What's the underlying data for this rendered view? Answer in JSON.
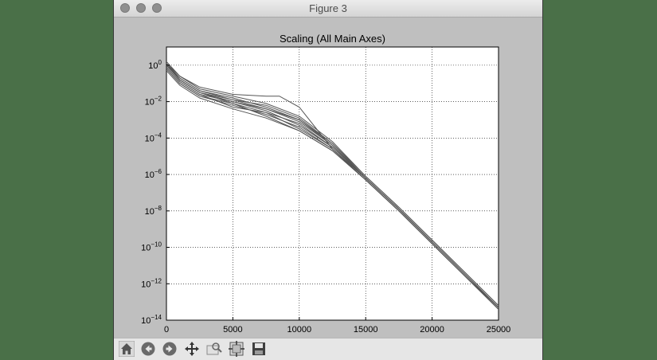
{
  "window": {
    "title": "Figure 3"
  },
  "toolbar": {
    "buttons": [
      {
        "name": "home-button",
        "icon": "home-icon"
      },
      {
        "name": "back-button",
        "icon": "back-arrow-icon"
      },
      {
        "name": "forward-button",
        "icon": "forward-arrow-icon"
      },
      {
        "name": "pan-button",
        "icon": "pan-arrows-icon"
      },
      {
        "name": "zoom-button",
        "icon": "zoom-rect-icon"
      },
      {
        "name": "subplots-button",
        "icon": "subplots-config-icon"
      },
      {
        "name": "save-button",
        "icon": "save-floppy-icon"
      }
    ]
  },
  "chart_data": {
    "type": "line",
    "title": "Scaling (All Main Axes)",
    "xlabel": "",
    "ylabel": "",
    "yscale": "log",
    "xlim": [
      0,
      25000
    ],
    "ylim_exp": [
      -14,
      1
    ],
    "xticks": [
      0,
      5000,
      10000,
      15000,
      20000,
      25000
    ],
    "xtick_labels": [
      "0",
      "5000",
      "10000",
      "15000",
      "20000",
      "25000"
    ],
    "yticks_exp": [
      0,
      -2,
      -4,
      -6,
      -8,
      -10,
      -12,
      -14
    ],
    "grid": true,
    "line_color": "#555555",
    "series": [
      {
        "x": [
          0,
          1000,
          2500,
          5000,
          7500,
          10000,
          12500,
          15000,
          17500,
          20000,
          22500,
          25000
        ],
        "log10_y": [
          0.0,
          -0.8,
          -1.5,
          -1.9,
          -2.4,
          -3.1,
          -4.4,
          -6.2,
          -7.9,
          -9.7,
          -11.5,
          -13.3
        ]
      },
      {
        "x": [
          0,
          1000,
          2500,
          5000,
          7500,
          10000,
          12500,
          15000,
          17500,
          20000,
          22500,
          25000
        ],
        "log10_y": [
          -0.1,
          -0.9,
          -1.6,
          -2.0,
          -2.5,
          -3.3,
          -4.5,
          -6.2,
          -7.9,
          -9.7,
          -11.5,
          -13.3
        ]
      },
      {
        "x": [
          0,
          1000,
          2500,
          5000,
          7500,
          10000,
          12500,
          15000,
          17500,
          20000,
          22500,
          25000
        ],
        "log10_y": [
          0.1,
          -0.7,
          -1.4,
          -1.8,
          -2.3,
          -3.0,
          -4.3,
          -6.1,
          -7.8,
          -9.6,
          -11.4,
          -13.2
        ]
      },
      {
        "x": [
          0,
          1000,
          2500,
          5000,
          7500,
          10000,
          12500,
          15000,
          17500,
          20000,
          22500,
          25000
        ],
        "log10_y": [
          -0.2,
          -1.0,
          -1.7,
          -2.2,
          -2.7,
          -3.4,
          -4.6,
          -6.3,
          -8.0,
          -9.8,
          -11.6,
          -13.4
        ]
      },
      {
        "x": [
          0,
          1000,
          2500,
          5000,
          7500,
          10000,
          12500,
          15000,
          17500,
          20000,
          22500,
          25000
        ],
        "log10_y": [
          0.0,
          -0.8,
          -1.5,
          -2.1,
          -2.8,
          -3.6,
          -4.7,
          -6.3,
          -8.0,
          -9.8,
          -11.6,
          -13.3
        ]
      },
      {
        "x": [
          0,
          1000,
          2500,
          5000,
          7500,
          10000,
          12500,
          15000,
          17500,
          20000,
          22500,
          25000
        ],
        "log10_y": [
          -0.3,
          -1.1,
          -1.8,
          -2.4,
          -2.9,
          -3.6,
          -4.7,
          -6.3,
          -8.0,
          -9.8,
          -11.6,
          -13.4
        ]
      },
      {
        "x": [
          0,
          1000,
          2500,
          5000,
          7500,
          10000,
          12500,
          15000,
          17500,
          20000,
          22500,
          25000
        ],
        "log10_y": [
          0.2,
          -0.6,
          -1.3,
          -1.7,
          -2.1,
          -2.8,
          -4.2,
          -6.1,
          -7.8,
          -9.6,
          -11.4,
          -13.2
        ]
      },
      {
        "x": [
          0,
          1000,
          2500,
          5000,
          7500,
          10000,
          12500,
          15000,
          17500,
          20000,
          22500,
          25000
        ],
        "log10_y": [
          -0.1,
          -0.9,
          -1.6,
          -2.3,
          -2.6,
          -3.2,
          -4.5,
          -6.2,
          -7.9,
          -9.7,
          -11.5,
          -13.3
        ]
      },
      {
        "x": [
          0,
          1000,
          2500,
          5000,
          7500,
          10000,
          12500,
          15000,
          17500,
          20000,
          22500,
          25000
        ],
        "log10_y": [
          0.0,
          -0.7,
          -1.4,
          -1.9,
          -2.2,
          -2.9,
          -4.3,
          -6.2,
          -7.9,
          -9.7,
          -11.5,
          -13.3
        ]
      },
      {
        "x": [
          0,
          1000,
          2500,
          5000,
          7500,
          10000,
          12500,
          15000,
          17500,
          20000,
          22500,
          25000
        ],
        "log10_y": [
          -0.2,
          -1.0,
          -1.7,
          -2.1,
          -2.6,
          -3.5,
          -4.6,
          -6.3,
          -8.0,
          -9.8,
          -11.6,
          -13.4
        ]
      },
      {
        "x": [
          0,
          1000,
          2500,
          5000,
          7500,
          10000,
          12500,
          15000,
          17500,
          20000,
          22500,
          25000
        ],
        "log10_y": [
          0.1,
          -0.8,
          -1.5,
          -2.0,
          -2.4,
          -3.0,
          -4.4,
          -6.2,
          -7.9,
          -9.7,
          -11.5,
          -13.3
        ]
      },
      {
        "x": [
          0,
          1000,
          2500,
          5000,
          7500,
          8500,
          10000,
          12500,
          15000,
          17500,
          20000,
          22500,
          25000
        ],
        "log10_y": [
          0.1,
          -0.6,
          -1.2,
          -1.6,
          -1.7,
          -1.7,
          -2.3,
          -4.6,
          -6.2,
          -7.9,
          -9.7,
          -11.5,
          -13.3
        ]
      }
    ]
  }
}
